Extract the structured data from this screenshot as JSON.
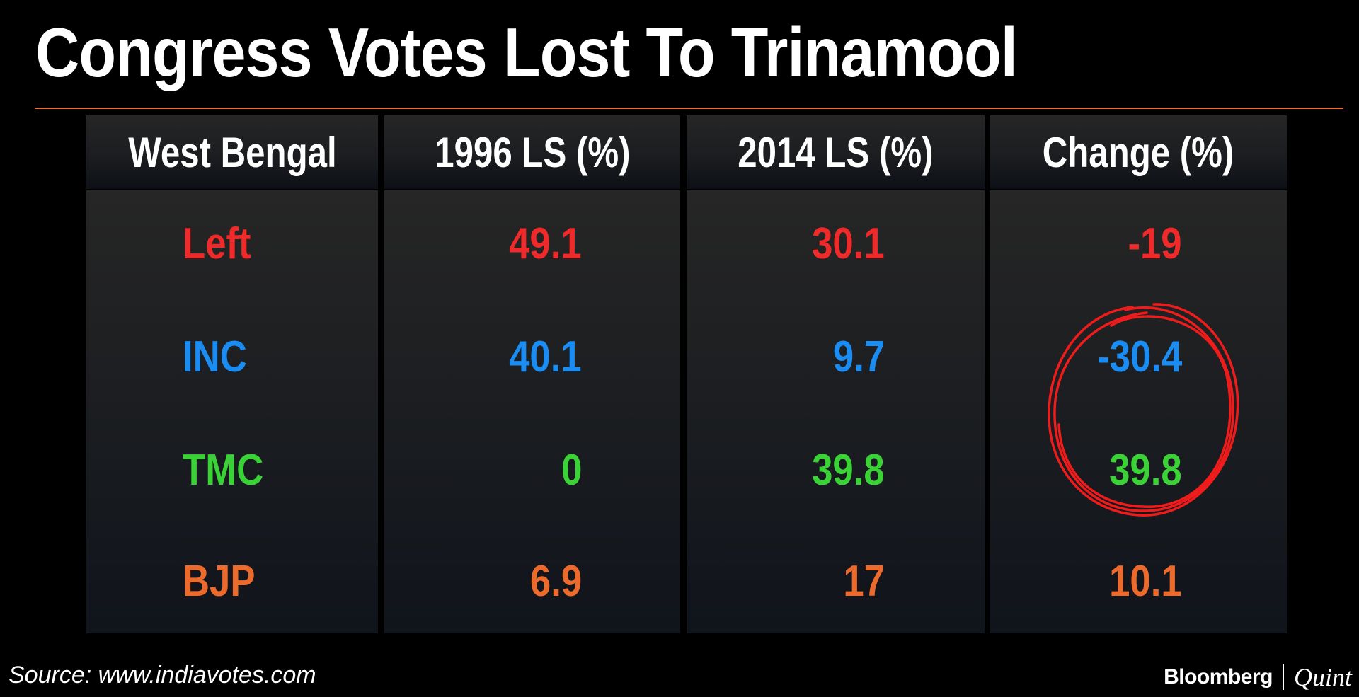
{
  "title": "Congress Votes Lost To Trinamool",
  "colors": {
    "accent_rule": "#e8703a",
    "Left": "#ee2a2a",
    "INC": "#1b8cf2",
    "TMC": "#3ad236",
    "BJP": "#ec6a2c",
    "highlight_circle": "#f01c1c"
  },
  "chart_data": {
    "type": "table",
    "title": "Congress Votes Lost To Trinamool",
    "columns": [
      "West Bengal",
      "1996 LS (%)",
      "2014 LS (%)",
      "Change (%)"
    ],
    "rows": [
      {
        "party": "Left",
        "y1996": "49.1",
        "y2014": "30.1",
        "change": "-19"
      },
      {
        "party": "INC",
        "y1996": "40.1",
        "y2014": "9.7",
        "change": "-30.4"
      },
      {
        "party": "TMC",
        "y1996": "0",
        "y2014": "39.8",
        "change": "39.8"
      },
      {
        "party": "BJP",
        "y1996": "6.9",
        "y2014": "17",
        "change": "10.1"
      }
    ],
    "annotations": [
      "Hand-drawn red circle highlighting INC change -30.4 and TMC change 39.8"
    ]
  },
  "footer": {
    "source": "Source: www.indiavotes.com",
    "brand_left": "Bloomberg",
    "brand_right": "Quint"
  }
}
